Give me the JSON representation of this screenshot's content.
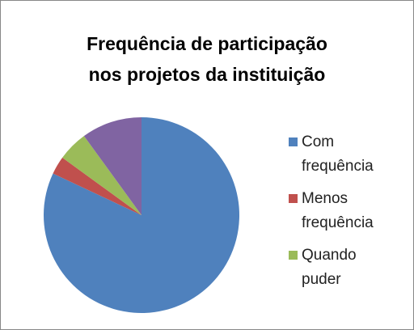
{
  "chart_data": {
    "type": "pie",
    "title": [
      "Frequência de participação",
      "nos projetos da instituição"
    ],
    "categories": [
      "Com frequência",
      "Menos frequência",
      "Quando puder",
      null
    ],
    "values": [
      82,
      3,
      5,
      10
    ],
    "colors": [
      "#4f81bd",
      "#c0504d",
      "#9bbb59",
      "#8064a2"
    ],
    "legend": "right"
  }
}
